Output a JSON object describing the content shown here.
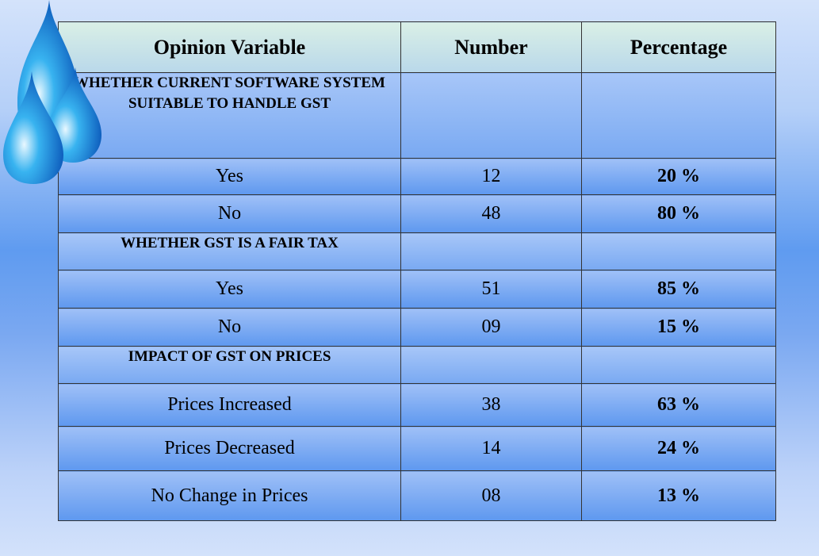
{
  "table": {
    "header": [
      "Opinion Variable",
      "Number",
      "Percentage"
    ],
    "sections": [
      {
        "title": "WHETHER CURRENT SOFTWARE SYSTEM SUITABLE TO HANDLE GST",
        "rows": [
          [
            "Yes",
            "12",
            "20 %"
          ],
          [
            "No",
            "48",
            "80 %"
          ]
        ]
      },
      {
        "title": "WHETHER GST IS A FAIR TAX",
        "rows": [
          [
            "Yes",
            "51",
            "85 %"
          ],
          [
            "No",
            "09",
            "15 %"
          ]
        ]
      },
      {
        "title": "IMPACT OF GST ON PRICES",
        "rows": [
          [
            "Prices Increased",
            "38",
            "63 %"
          ],
          [
            "Prices Decreased",
            "14",
            "24 %"
          ],
          [
            "No Change in Prices",
            "08",
            "13 %"
          ]
        ]
      }
    ]
  }
}
